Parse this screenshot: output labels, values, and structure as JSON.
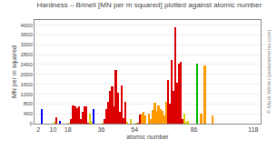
{
  "chart_data": {
    "type": "bar",
    "title": "Hardness – Brinell [MN per m squared] plotted against atomic number",
    "xlabel": "atomic number",
    "ylabel": "MN per m squared",
    "x": [
      4,
      11,
      12,
      14,
      19,
      20,
      21,
      22,
      23,
      24,
      25,
      26,
      27,
      28,
      29,
      30,
      31,
      32,
      37,
      38,
      39,
      40,
      41,
      42,
      43,
      44,
      45,
      46,
      47,
      48,
      49,
      50,
      52,
      55,
      56,
      57,
      58,
      59,
      60,
      62,
      63,
      64,
      65,
      66,
      67,
      68,
      69,
      70,
      71,
      72,
      73,
      74,
      75,
      76,
      77,
      78,
      79,
      80,
      81,
      82,
      83,
      88,
      90,
      92,
      96
    ],
    "values": [
      600,
      69,
      260,
      120,
      35,
      170,
      750,
      716,
      628,
      687,
      196,
      490,
      700,
      700,
      35,
      412,
      60,
      600,
      35,
      170,
      589,
      900,
      1320,
      1500,
      687,
      2160,
      1246,
      461,
      1530,
      203,
      900,
      51,
      180,
      14,
      28,
      363,
      412,
      481,
      343,
      412,
      167,
      570,
      863,
      500,
      746,
      589,
      520,
      343,
      893,
      1760,
      800,
      2570,
      1320,
      3920,
      1670,
      2450,
      2500,
      167,
      400,
      38,
      94,
      2450,
      400,
      2375,
      345
    ],
    "colors": [
      "#0000ff",
      "#ddcc00",
      "#dd0000",
      "#0000ff",
      "#ddcc00",
      "#dd0000",
      "#dd0000",
      "#dd0000",
      "#dd0000",
      "#dd0000",
      "#dd0000",
      "#dd0000",
      "#dd0000",
      "#dd0000",
      "#dd0000",
      "#ddcc00",
      "#ddcc00",
      "#0000ff",
      "#ddcc00",
      "#dd0000",
      "#dd0000",
      "#dd0000",
      "#dd0000",
      "#dd0000",
      "#dd0000",
      "#dd0000",
      "#dd0000",
      "#dd0000",
      "#dd0000",
      "#dd0000",
      "#dd0000",
      "#ddcc00",
      "#ddcc00",
      "#ddcc00",
      "#dd0000",
      "#dd0000",
      "#ff9900",
      "#ff9900",
      "#ff9900",
      "#ff9900",
      "#ff9900",
      "#ff9900",
      "#ff9900",
      "#ff9900",
      "#ff9900",
      "#ff9900",
      "#ff9900",
      "#ff9900",
      "#ff9900",
      "#dd0000",
      "#dd0000",
      "#dd0000",
      "#dd0000",
      "#dd0000",
      "#dd0000",
      "#dd0000",
      "#dd0000",
      "#dd0000",
      "#ddcc00",
      "#ddcc00",
      "#ddcc00",
      "#00bb00",
      "#ff9900",
      "#ff9900",
      "#ff9900"
    ],
    "xlim": [
      0,
      122
    ],
    "xticks": [
      2,
      10,
      18,
      36,
      54,
      86,
      118
    ],
    "ylim": [
      0,
      4200
    ],
    "yticks": [
      0,
      400,
      800,
      1200,
      1600,
      2000,
      2400,
      2800,
      3200,
      3600,
      4000
    ],
    "grid": true,
    "annotations": [
      "© Mark Winter (webelements.com)"
    ]
  }
}
